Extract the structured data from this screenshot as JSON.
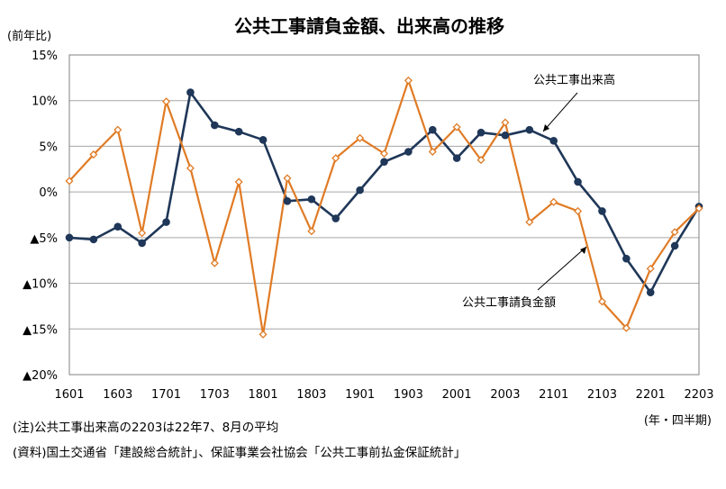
{
  "chart_data": {
    "type": "line",
    "title": "公共工事請負金額、出来高の推移",
    "ylabel": "(前年比)",
    "xlabel": "(年・四半期)",
    "ylim": [
      -20,
      15
    ],
    "ytick_values": [
      15,
      10,
      5,
      0,
      -5,
      -10,
      -15,
      -20
    ],
    "ytick_labels": [
      "15%",
      "10%",
      "5%",
      "0%",
      "▲5%",
      "▲10%",
      "▲15%",
      "▲20%"
    ],
    "xtick_labels": [
      "1601",
      "1603",
      "1701",
      "1703",
      "1801",
      "1803",
      "1901",
      "1903",
      "2001",
      "2003",
      "2101",
      "2103",
      "2201",
      "2203"
    ],
    "x": [
      "1601",
      "1602",
      "1603",
      "1604",
      "1701",
      "1702",
      "1703",
      "1704",
      "1801",
      "1802",
      "1803",
      "1804",
      "1901",
      "1902",
      "1903",
      "1904",
      "2001",
      "2002",
      "2003",
      "2004",
      "2101",
      "2102",
      "2103",
      "2104",
      "2201",
      "2202",
      "2203"
    ],
    "grid": true,
    "series": [
      {
        "name": "公共工事出来高",
        "color": "#1f3758",
        "marker": "filled-circle",
        "values": [
          -5.0,
          -5.2,
          -3.8,
          -5.6,
          -3.3,
          10.9,
          7.3,
          6.6,
          5.7,
          -1.0,
          -0.8,
          -2.9,
          0.2,
          3.3,
          4.4,
          6.8,
          3.7,
          6.5,
          6.2,
          6.8,
          5.6,
          1.1,
          -2.1,
          -7.3,
          -11.0,
          -5.9,
          -1.6
        ]
      },
      {
        "name": "公共工事請負金額",
        "color": "#e07b25",
        "marker": "hollow-diamond",
        "values": [
          1.2,
          4.1,
          6.8,
          -4.5,
          9.9,
          2.6,
          -7.8,
          1.1,
          -15.6,
          1.5,
          -4.3,
          3.7,
          5.9,
          4.2,
          12.2,
          4.4,
          7.1,
          3.5,
          7.6,
          -3.3,
          -1.1,
          -2.1,
          -12.0,
          -14.9,
          -8.4,
          -4.4,
          -1.8
        ]
      }
    ]
  },
  "notes": {
    "note1": "(注)公共工事出来高の2203は22年7、8月の平均",
    "note2": "(資料)国土交通省「建設総合統計」、保証事業会社協会「公共工事前払金保証統計」"
  }
}
